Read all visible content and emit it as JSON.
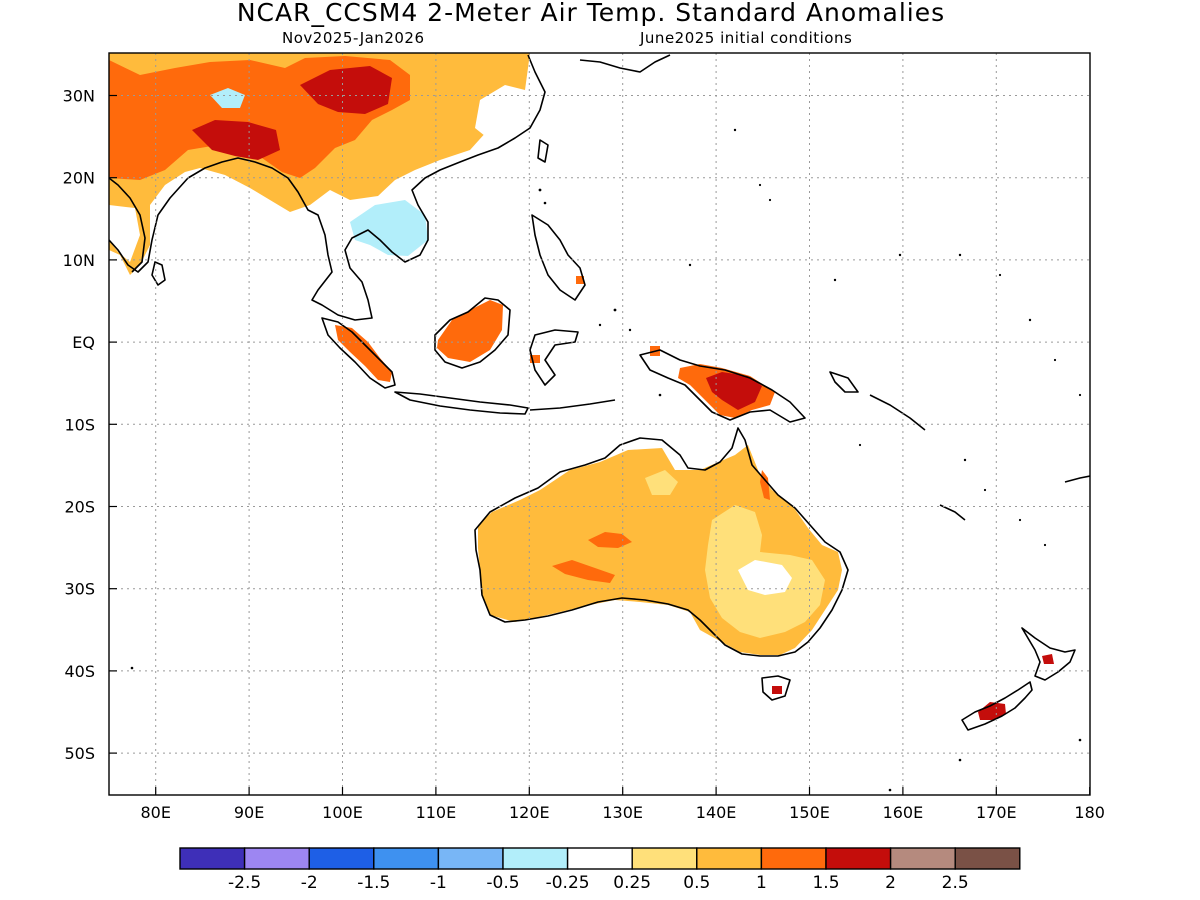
{
  "title": "NCAR_CCSM4 2-Meter Air Temp. Standard Anomalies",
  "subtitle_left": "Nov2025-Jan2026",
  "subtitle_right": "June2025 initial conditions",
  "map": {
    "lon_ticks": [
      "80E",
      "90E",
      "100E",
      "110E",
      "120E",
      "130E",
      "140E",
      "150E",
      "160E",
      "170E",
      "180"
    ],
    "lat_ticks": [
      "30N",
      "20N",
      "10N",
      "EQ",
      "10S",
      "20S",
      "30S",
      "40S",
      "50S"
    ]
  },
  "colorbar": {
    "colors": [
      "#3e2fb8",
      "#9d86f2",
      "#1e5fe6",
      "#3e91f0",
      "#78b6f6",
      "#b2eefa",
      "#ffffff",
      "#ffe07a",
      "#ffbb3c",
      "#ff6a0c",
      "#c40d0b",
      "#b58a7e",
      "#7a5146"
    ],
    "labels": [
      "-2.5",
      "-2",
      "-1.5",
      "-1",
      "-0.5",
      "-0.25",
      "0.25",
      "0.5",
      "1",
      "1.5",
      "2",
      "2.5"
    ]
  },
  "palette": {
    "light_orange": "#ffe07a",
    "orange": "#ffbb3c",
    "dark_orange": "#ff6a0c",
    "red": "#c40d0b",
    "light_blue": "#b2eefa"
  }
}
